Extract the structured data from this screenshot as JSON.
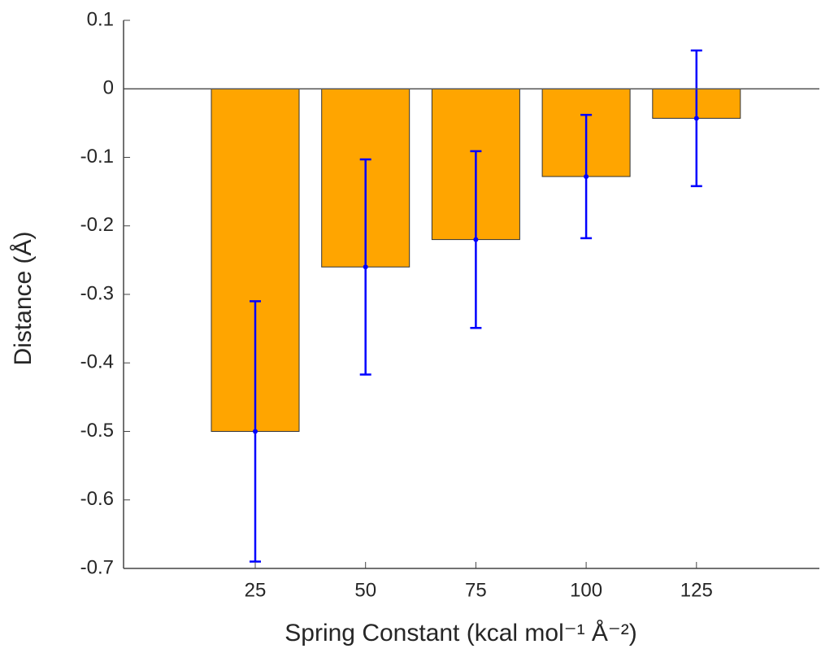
{
  "chart_data": {
    "type": "bar",
    "xlabel": "Spring Constant (kcal mol⁻¹ Å⁻²)",
    "ylabel": "Distance (Å)",
    "categories": [
      "25",
      "50",
      "75",
      "100",
      "125"
    ],
    "series": [
      {
        "color": "#FFA500",
        "error_color": "#0000FF",
        "values": [
          -0.5,
          -0.26,
          -0.22,
          -0.128,
          -0.043
        ],
        "errors": [
          0.19,
          0.157,
          0.129,
          0.09,
          0.099
        ]
      }
    ],
    "ylim": [
      -0.7,
      0.1
    ],
    "yticks": [
      0.1,
      0,
      -0.1,
      -0.2,
      -0.3,
      -0.4,
      -0.5,
      -0.6,
      -0.7
    ]
  }
}
